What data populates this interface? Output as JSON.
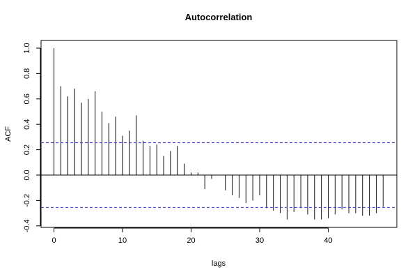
{
  "chart_data": {
    "type": "bar",
    "title": "Autocorrelation",
    "xlabel": "lags",
    "ylabel": "ACF",
    "xlim": [
      -1,
      49
    ],
    "ylim": [
      -0.4,
      1.0
    ],
    "x_ticks": [
      0,
      10,
      20,
      30,
      40
    ],
    "y_ticks": [
      -0.4,
      -0.2,
      0.0,
      0.2,
      0.4,
      0.6,
      0.8,
      1.0
    ],
    "y_tick_labels": [
      "-0.4",
      "-0.2",
      "0.0",
      "0.2",
      "0.4",
      "0.6",
      "0.8",
      "1.0"
    ],
    "x_tick_labels": [
      "0",
      "10",
      "20",
      "30",
      "40"
    ],
    "confidence_bounds": [
      0.255,
      -0.255
    ],
    "confidence_color": "#3b3bd6",
    "lags": [
      0,
      1,
      2,
      3,
      4,
      5,
      6,
      7,
      8,
      9,
      10,
      11,
      12,
      13,
      14,
      15,
      16,
      17,
      18,
      19,
      20,
      21,
      22,
      23,
      24,
      25,
      26,
      27,
      28,
      29,
      30,
      31,
      32,
      33,
      34,
      35,
      36,
      37,
      38,
      39,
      40,
      41,
      42,
      43,
      44,
      45,
      46,
      47,
      48
    ],
    "values": [
      1.0,
      0.7,
      0.62,
      0.68,
      0.57,
      0.6,
      0.66,
      0.5,
      0.41,
      0.46,
      0.31,
      0.35,
      0.47,
      0.27,
      0.23,
      0.24,
      0.15,
      0.19,
      0.23,
      0.09,
      0.02,
      0.02,
      -0.11,
      -0.03,
      0.0,
      -0.12,
      -0.16,
      -0.18,
      -0.22,
      -0.2,
      -0.16,
      -0.26,
      -0.28,
      -0.3,
      -0.35,
      -0.29,
      -0.26,
      -0.31,
      -0.35,
      -0.35,
      -0.34,
      -0.31,
      -0.27,
      -0.3,
      -0.3,
      -0.32,
      -0.32,
      -0.3,
      -0.25
    ],
    "grid": false
  }
}
